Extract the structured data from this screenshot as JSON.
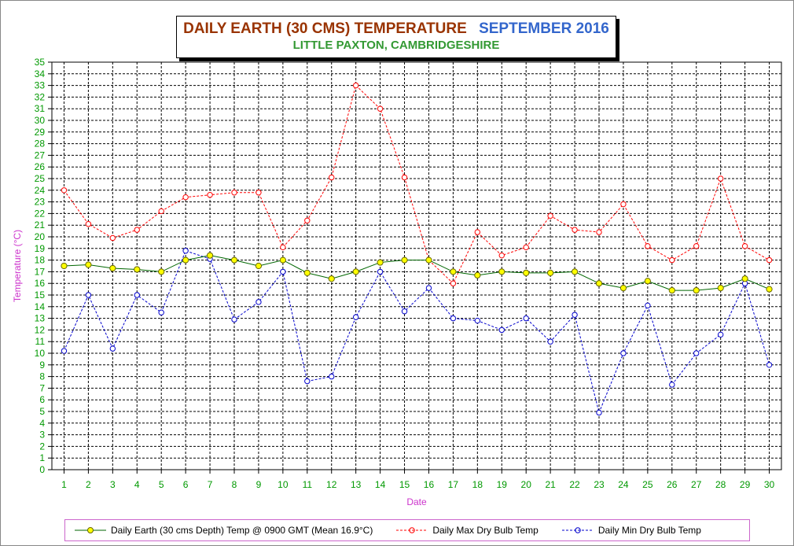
{
  "title": {
    "main": "DAILY EARTH (30 CMS) TEMPERATURE",
    "month": "SEPTEMBER 2016",
    "subtitle": "LITTLE PAXTON, CAMBRIDGESHIRE"
  },
  "colors": {
    "earth_line": "#006600",
    "earth_marker": "#ffff00",
    "max_line": "#ff0000",
    "min_line": "#0000cc",
    "axis_label": "#cc33cc",
    "tick_label": "#009900"
  },
  "chart_data": {
    "type": "line",
    "xlabel": "Date",
    "ylabel": "Temperature (°C)",
    "ylim": [
      0,
      35
    ],
    "grid": true,
    "legend_placement": "bottom",
    "x": [
      1,
      2,
      3,
      4,
      5,
      6,
      7,
      8,
      9,
      10,
      11,
      12,
      13,
      14,
      15,
      16,
      17,
      18,
      19,
      20,
      21,
      22,
      23,
      24,
      25,
      26,
      27,
      28,
      29,
      30
    ],
    "series": [
      {
        "name": "Daily Earth (30 cms Depth) Temp @ 0900 GMT (Mean 16.9°C)",
        "style": "solid",
        "values": [
          17.5,
          17.6,
          17.3,
          17.2,
          17.0,
          18.0,
          18.4,
          18.0,
          17.5,
          18.0,
          16.9,
          16.4,
          17.0,
          17.8,
          18.0,
          18.0,
          17.0,
          16.7,
          17.0,
          16.9,
          16.9,
          17.0,
          16.0,
          15.6,
          16.2,
          15.4,
          15.4,
          15.6,
          16.4,
          15.5
        ]
      },
      {
        "name": "Daily Max Dry Bulb Temp",
        "style": "dashed",
        "values": [
          24.0,
          21.1,
          19.9,
          20.6,
          22.2,
          23.4,
          23.6,
          23.8,
          23.8,
          19.1,
          21.4,
          25.1,
          33.0,
          31.0,
          25.1,
          18.0,
          16.0,
          20.4,
          18.4,
          19.1,
          21.8,
          20.6,
          20.4,
          22.8,
          19.2,
          18.0,
          19.2,
          25.0,
          19.2,
          18.0
        ]
      },
      {
        "name": "Daily Min Dry Bulb Temp",
        "style": "dashed",
        "values": [
          10.2,
          15.0,
          10.4,
          15.0,
          13.5,
          18.8,
          18.1,
          12.9,
          14.4,
          17.0,
          7.6,
          8.0,
          13.1,
          17.0,
          13.6,
          15.6,
          13.0,
          12.8,
          12.0,
          13.0,
          11.0,
          13.3,
          4.9,
          10.0,
          14.1,
          7.3,
          10.0,
          11.6,
          16.0,
          9.0
        ]
      }
    ]
  }
}
